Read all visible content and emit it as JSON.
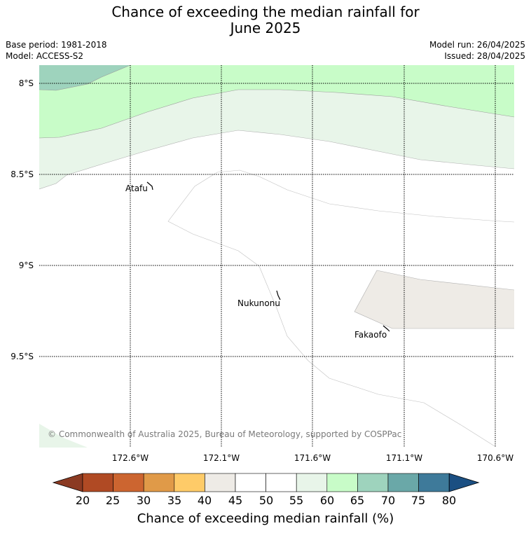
{
  "title_line1": "Chance of exceeding the median rainfall for",
  "title_line2": "June 2025",
  "base_period": "Base period: 1981-2018",
  "model": "Model: ACCESS-S2",
  "model_run": "Model run: 26/04/2025",
  "issued": "Issued: 28/04/2025",
  "copyright": "© Commonwealth of Australia 2025, Bureau of Meteorology, supported by COSPPac",
  "longitude_labels": [
    "172.6°W",
    "172.1°W",
    "171.6°W",
    "171.1°W",
    "170.6°W"
  ],
  "latitude_labels": [
    "8°S",
    "8.5°S",
    "9°S",
    "9.5°S"
  ],
  "places": {
    "atafu": "Atafu",
    "nukunonu": "Nukunonu",
    "fakaofo": "Fakaofo"
  },
  "colorbar": {
    "ticks": [
      "20",
      "25",
      "30",
      "35",
      "40",
      "45",
      "50",
      "55",
      "60",
      "65",
      "70",
      "75",
      "80"
    ],
    "label": "Chance of exceeding median rainfall (%)",
    "colors": [
      "#8b3a22",
      "#b04a24",
      "#cc6530",
      "#e09a48",
      "#fecb68",
      "#eeebe6",
      "#ffffff",
      "#ffffff",
      "#e8f5e9",
      "#c8fcc8",
      "#9ed3bd",
      "#6aa8a8",
      "#3e7a9a",
      "#1b4f82"
    ]
  },
  "map_colors": {
    "band_65_70": "#9ed3bd",
    "band_60_65": "#c8fcc8",
    "band_55_60": "#e8f5e9",
    "band_40_45": "#eeebe6"
  }
}
